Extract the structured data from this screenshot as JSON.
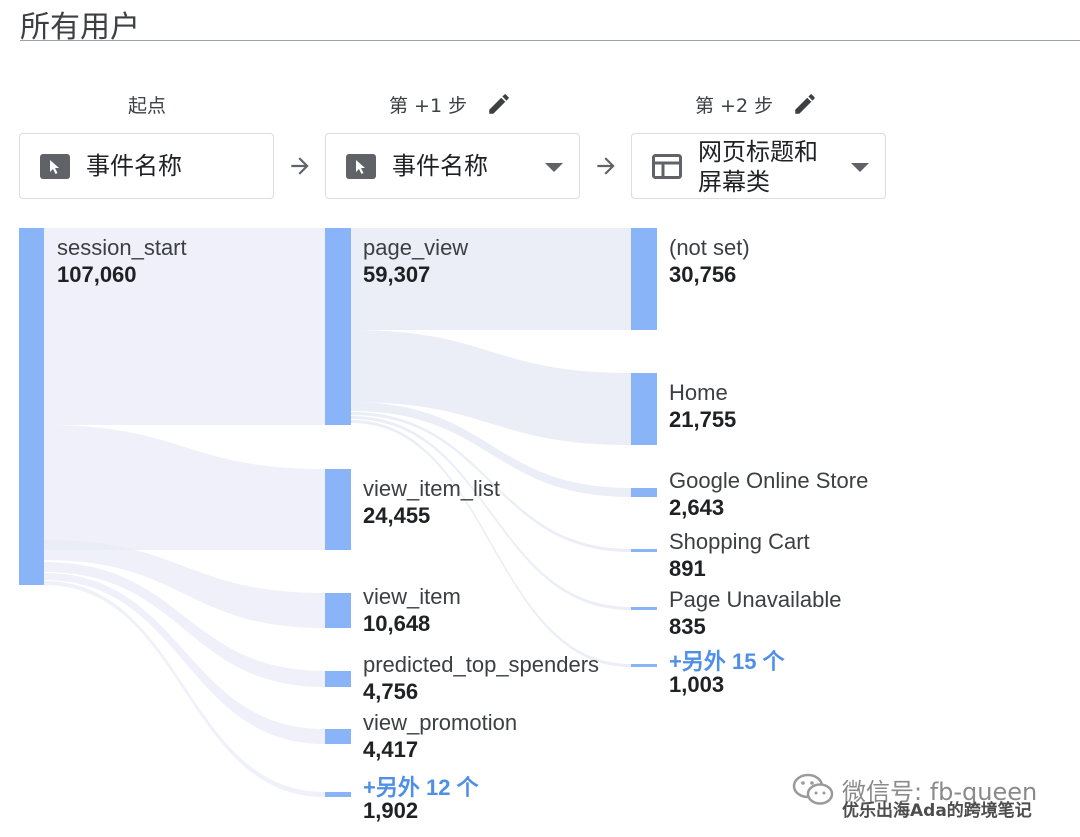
{
  "header": {
    "title": "所有用户"
  },
  "columns": [
    {
      "header": "起点",
      "selector_label_line1": "事件名称",
      "selector_label_line2": ""
    },
    {
      "header": "第 +1 步",
      "selector_label_line1": "事件名称",
      "selector_label_line2": ""
    },
    {
      "header": "第 +2 步",
      "selector_label_line1": "网页标题和",
      "selector_label_line2": "屏幕类"
    }
  ],
  "icons": {
    "pencil": "pencil-icon",
    "cursor": "cursor-icon",
    "webpage": "webpage-icon",
    "arrow": "arrow-right-icon",
    "caret": "chevron-down-icon"
  },
  "colors": {
    "node": "#8ab4f8",
    "flow": "#e8eaf6",
    "more_link": "#4f8fe6"
  },
  "nodes": {
    "start": [
      {
        "name": "session_start",
        "value": "107,060"
      }
    ],
    "step1": [
      {
        "name": "page_view",
        "value": "59,307"
      },
      {
        "name": "view_item_list",
        "value": "24,455"
      },
      {
        "name": "view_item",
        "value": "10,648"
      },
      {
        "name": "predicted_top_spenders",
        "value": "4,756"
      },
      {
        "name": "view_promotion",
        "value": "4,417"
      },
      {
        "name": "+另外 12 个",
        "value": "1,902"
      }
    ],
    "step2": [
      {
        "name": "(not set)",
        "value": "30,756"
      },
      {
        "name": "Home",
        "value": "21,755"
      },
      {
        "name": "Google Online Store",
        "value": "2,643"
      },
      {
        "name": "Shopping Cart",
        "value": "891"
      },
      {
        "name": "Page Unavailable",
        "value": "835"
      },
      {
        "name": "+另外 15 个",
        "value": "1,003"
      }
    ]
  },
  "watermark": {
    "line1": "微信号: fb-queen",
    "line2": "优乐出海Ada的跨境笔记"
  }
}
